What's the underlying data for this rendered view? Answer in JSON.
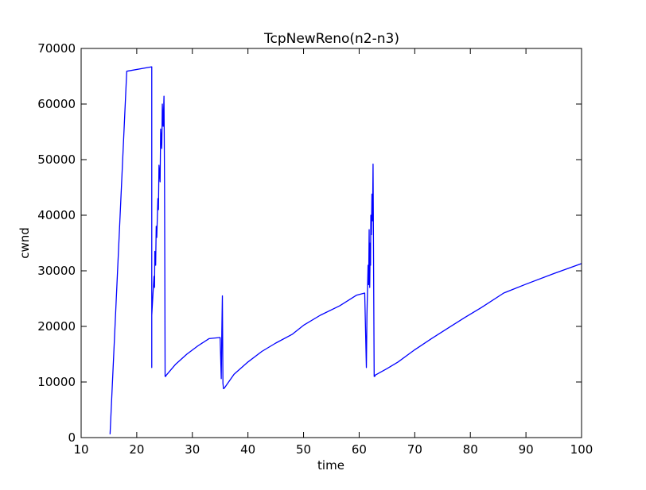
{
  "chart_data": {
    "type": "line",
    "title": "TcpNewReno(n2-n3)",
    "xlabel": "time",
    "ylabel": "cwnd",
    "xlim": [
      10,
      100
    ],
    "ylim": [
      0,
      70000
    ],
    "x_ticks": [
      10,
      20,
      30,
      40,
      50,
      60,
      70,
      80,
      90,
      100
    ],
    "x_tick_labels": [
      "10",
      "20",
      "30",
      "40",
      "50",
      "60",
      "70",
      "80",
      "90",
      "100"
    ],
    "y_ticks": [
      0,
      10000,
      20000,
      30000,
      40000,
      50000,
      60000,
      70000
    ],
    "y_tick_labels": [
      "0",
      "10000",
      "20000",
      "30000",
      "40000",
      "50000",
      "60000",
      "70000"
    ],
    "grid": false,
    "legend": "none",
    "series": [
      {
        "color": "#0000ff",
        "x": [
          15.2,
          18.2,
          22.7,
          22.7,
          22.7,
          23.1,
          23.2,
          23.25,
          23.4,
          23.5,
          23.6,
          23.8,
          23.9,
          24.0,
          24.2,
          24.3,
          24.5,
          24.6,
          24.75,
          24.9,
          25.0,
          25.05,
          25.1,
          25.2,
          25.3,
          27.0,
          29.0,
          31.0,
          33.0,
          35.0,
          35.2,
          35.3,
          35.4,
          35.5,
          35.6,
          35.75,
          37.5,
          40.0,
          42.5,
          45.0,
          48.0,
          50.0,
          53.0,
          56.5,
          59.5,
          61.0,
          61.3,
          61.4,
          61.6,
          61.7,
          61.8,
          61.9,
          62.0,
          62.05,
          62.1,
          62.2,
          62.3,
          62.4,
          62.5,
          62.6,
          62.7,
          62.8,
          62.9,
          62.95,
          63.0,
          65.0,
          67.0,
          70.0,
          73.0,
          76.0,
          79.0,
          82.0,
          86.0,
          90.0,
          95.0,
          100.0
        ],
        "y": [
          600,
          65900,
          66700,
          12600,
          22000,
          29000,
          27000,
          33500,
          31000,
          38000,
          36000,
          43000,
          41000,
          49000,
          46000,
          55500,
          52000,
          60000,
          56000,
          61400,
          45000,
          30000,
          11000,
          11000,
          11200,
          13200,
          15000,
          16500,
          17800,
          18000,
          10600,
          19000,
          25500,
          9800,
          8800,
          8900,
          11400,
          13600,
          15500,
          17000,
          18600,
          20200,
          22000,
          23700,
          25600,
          26000,
          12600,
          22000,
          31000,
          27500,
          37400,
          27000,
          35000,
          31000,
          40000,
          36500,
          43800,
          39000,
          49200,
          30000,
          11000,
          11000,
          11200,
          11300,
          11300,
          12400,
          13600,
          15800,
          17800,
          19700,
          21600,
          23400,
          26000,
          27600,
          29500,
          31300
        ]
      }
    ]
  }
}
